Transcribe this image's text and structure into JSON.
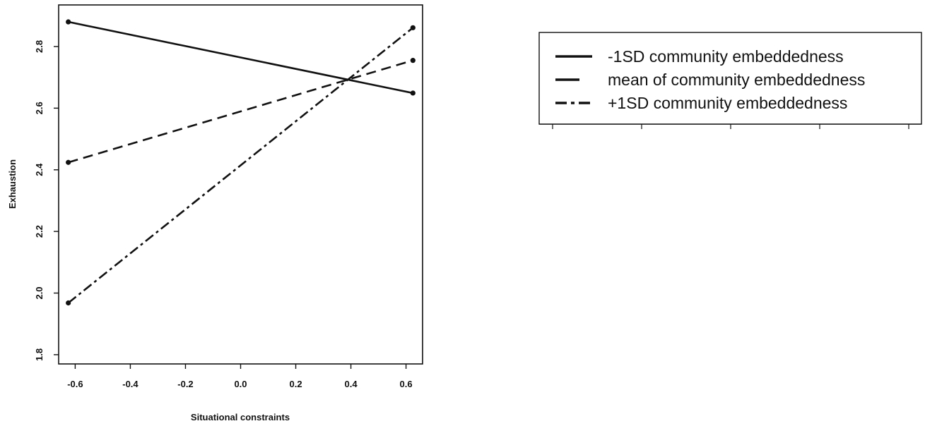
{
  "chart_data": {
    "type": "line",
    "title": "",
    "xlabel": "Situational constraints",
    "ylabel": "Exhaustion",
    "xlim": [
      -0.66,
      0.66
    ],
    "ylim": [
      1.77,
      2.935
    ],
    "x_ticks": [
      -0.6,
      -0.4,
      -0.2,
      0.0,
      0.2,
      0.4,
      0.6
    ],
    "x_tick_labels": [
      "-0.6",
      "-0.4",
      "-0.2",
      "0.0",
      "0.2",
      "0.4",
      "0.6"
    ],
    "y_ticks": [
      1.8,
      2.0,
      2.2,
      2.4,
      2.6,
      2.8
    ],
    "y_tick_labels": [
      "1.8",
      "2.0",
      "2.2",
      "2.4",
      "2.6",
      "2.8"
    ],
    "grid": false,
    "legend_position": "top-right, outside plot",
    "series": [
      {
        "name": "-1SD community embeddedness",
        "dash": "solid",
        "x": [
          -0.625,
          0.625
        ],
        "y": [
          2.88,
          2.649
        ]
      },
      {
        "name": "mean of community embeddedness",
        "dash": "dashed",
        "x": [
          -0.625,
          0.625
        ],
        "y": [
          2.424,
          2.755
        ]
      },
      {
        "name": "+1SD community embeddedness",
        "dash": "dotdash",
        "x": [
          -0.625,
          0.625
        ],
        "y": [
          1.968,
          2.861
        ]
      }
    ]
  }
}
